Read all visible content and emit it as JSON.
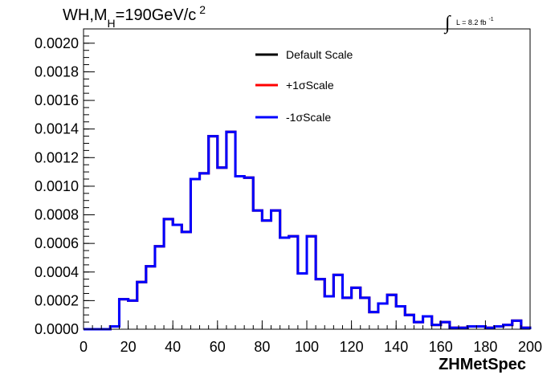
{
  "title": {
    "main": "WH,M",
    "sub": "H",
    "rest": "=190GeV/c",
    "sup": "2"
  },
  "luminosity": {
    "integral_symbol": "∫",
    "text": "L = 8.2 fb",
    "sup": "-1"
  },
  "chart_data": {
    "type": "line",
    "style": "step-histogram",
    "xlabel": "ZHMetSpec",
    "ylabel": "",
    "xlim": [
      0,
      200
    ],
    "ylim": [
      0,
      0.0021
    ],
    "x_ticks": [
      0,
      20,
      40,
      60,
      80,
      100,
      120,
      140,
      160,
      180,
      200
    ],
    "x_tick_labels": [
      "0",
      "20",
      "40",
      "60",
      "80",
      "100",
      "120",
      "140",
      "160",
      "180",
      "200"
    ],
    "y_ticks": [
      0,
      0.0002,
      0.0004,
      0.0006,
      0.0008,
      0.001,
      0.0012,
      0.0014,
      0.0016,
      0.0018,
      0.002
    ],
    "y_tick_labels": [
      "0.0000",
      "0.0002",
      "0.0004",
      "0.0006",
      "0.0008",
      "0.0010",
      "0.0012",
      "0.0014",
      "0.0016",
      "0.0018",
      "0.0020"
    ],
    "grid": false,
    "legend_position": "top-center",
    "bin_edges": [
      0,
      4,
      8,
      12,
      16,
      20,
      24,
      28,
      32,
      36,
      40,
      44,
      48,
      52,
      56,
      60,
      64,
      68,
      72,
      76,
      80,
      84,
      88,
      92,
      96,
      100,
      104,
      108,
      112,
      116,
      120,
      124,
      128,
      132,
      136,
      140,
      144,
      148,
      152,
      156,
      160,
      164,
      168,
      172,
      176,
      180,
      184,
      188,
      192,
      196,
      200
    ],
    "series": [
      {
        "name": "Default Scale",
        "color": "#000000",
        "values": [
          0,
          0,
          0,
          2e-05,
          0.00021,
          0.0002,
          0.00033,
          0.00044,
          0.00058,
          0.00077,
          0.00073,
          0.00068,
          0.00105,
          0.00109,
          0.00135,
          0.00113,
          0.00138,
          0.00107,
          0.00106,
          0.00083,
          0.00076,
          0.00083,
          0.00064,
          0.00065,
          0.00039,
          0.00065,
          0.00035,
          0.00023,
          0.00038,
          0.00022,
          0.00029,
          0.00022,
          0.00012,
          0.00018,
          0.00024,
          0.00016,
          0.0001,
          5e-05,
          9e-05,
          3e-05,
          5e-05,
          1e-05,
          1e-05,
          2e-05,
          2e-05,
          1e-05,
          2e-05,
          3e-05,
          6e-05,
          1e-05
        ]
      },
      {
        "name": "+1σScale",
        "color": "#ff0000",
        "values": [
          0,
          0,
          0,
          2e-05,
          0.00021,
          0.0002,
          0.00033,
          0.00044,
          0.00058,
          0.00077,
          0.00073,
          0.00068,
          0.00105,
          0.00109,
          0.00135,
          0.00113,
          0.00138,
          0.00107,
          0.00106,
          0.00083,
          0.00076,
          0.00083,
          0.00064,
          0.00065,
          0.00039,
          0.00065,
          0.00035,
          0.00023,
          0.00038,
          0.00022,
          0.00029,
          0.00022,
          0.00012,
          0.00018,
          0.00024,
          0.00016,
          0.0001,
          5e-05,
          9e-05,
          3e-05,
          5e-05,
          1e-05,
          1e-05,
          2e-05,
          2e-05,
          1e-05,
          2e-05,
          3e-05,
          6e-05,
          1e-05
        ]
      },
      {
        "name": "-1σScale",
        "color": "#0000ff",
        "values": [
          0,
          0,
          0,
          2e-05,
          0.00021,
          0.0002,
          0.00033,
          0.00044,
          0.00058,
          0.00077,
          0.00073,
          0.00068,
          0.00105,
          0.00109,
          0.00135,
          0.00113,
          0.00138,
          0.00107,
          0.00106,
          0.00083,
          0.00076,
          0.00083,
          0.00064,
          0.00065,
          0.00039,
          0.00065,
          0.00035,
          0.00023,
          0.00038,
          0.00022,
          0.00029,
          0.00022,
          0.00012,
          0.00018,
          0.00024,
          0.00016,
          0.0001,
          5e-05,
          9e-05,
          3e-05,
          5e-05,
          1e-05,
          1e-05,
          2e-05,
          2e-05,
          1e-05,
          2e-05,
          3e-05,
          6e-05,
          1e-05
        ]
      }
    ]
  }
}
